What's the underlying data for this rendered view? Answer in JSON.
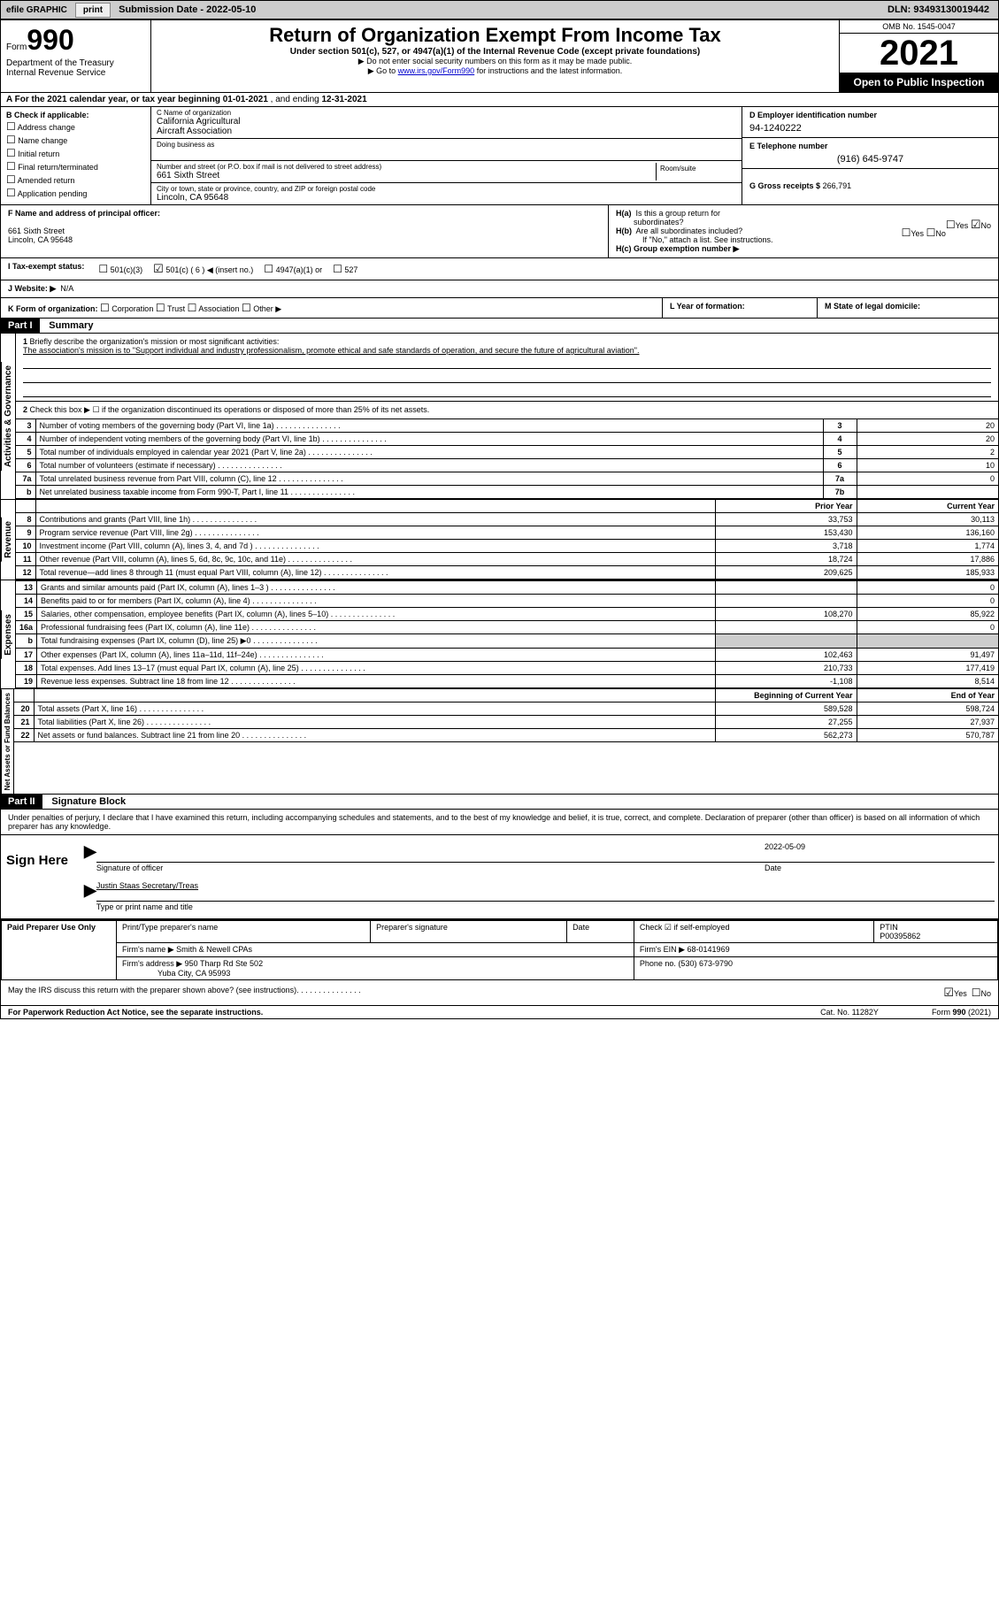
{
  "topbar": {
    "efile_label": "efile GRAPHIC",
    "print_btn": "print",
    "submission_label": "Submission Date - 2022-05-10",
    "dln": "DLN: 93493130019442"
  },
  "header": {
    "form_label": "Form",
    "form_num": "990",
    "dept": "Department of the Treasury",
    "irs": "Internal Revenue Service",
    "title": "Return of Organization Exempt From Income Tax",
    "subtitle": "Under section 501(c), 527, or 4947(a)(1) of the Internal Revenue Code (except private foundations)",
    "note1": "▶ Do not enter social security numbers on this form as it may be made public.",
    "note2_pre": "▶ Go to ",
    "note2_link": "www.irs.gov/Form990",
    "note2_post": " for instructions and the latest information.",
    "omb": "OMB No. 1545-0047",
    "year": "2021",
    "open": "Open to Public Inspection"
  },
  "row_a": {
    "text_pre": "A For the 2021 calendar year, or tax year beginning ",
    "begin": "01-01-2021",
    "mid": " , and ending ",
    "end": "12-31-2021"
  },
  "col_b": {
    "title": "B Check if applicable:",
    "items": [
      "Address change",
      "Name change",
      "Initial return",
      "Final return/terminated",
      "Amended return",
      "Application pending"
    ]
  },
  "col_c": {
    "name_label": "C Name of organization",
    "name1": "California Agricultural",
    "name2": "Aircraft Association",
    "dba_label": "Doing business as",
    "addr_label": "Number and street (or P.O. box if mail is not delivered to street address)",
    "room_label": "Room/suite",
    "street": "661 Sixth Street",
    "city_label": "City or town, state or province, country, and ZIP or foreign postal code",
    "city": "Lincoln, CA  95648"
  },
  "col_d": {
    "ein_label": "D Employer identification number",
    "ein": "94-1240222",
    "tel_label": "E Telephone number",
    "tel": "(916) 645-9747",
    "gross_label": "G Gross receipts $",
    "gross": "266,791"
  },
  "col_f": {
    "label": "F  Name and address of principal officer:",
    "l1": "661 Sixth Street",
    "l2": "Lincoln, CA  95648"
  },
  "col_h": {
    "ha": "H(a)  Is this a group return for subordinates?",
    "hb": "H(b)  Are all subordinates included?",
    "hb_note": "If \"No,\" attach a list. See instructions.",
    "hc": "H(c)  Group exemption number ▶",
    "yes": "Yes",
    "no": "No"
  },
  "row_i": {
    "label": "I   Tax-exempt status:",
    "o1": "501(c)(3)",
    "o2": "501(c) ( 6 ) ◀ (insert no.)",
    "o3": "4947(a)(1) or",
    "o4": "527"
  },
  "row_j": {
    "label": "J   Website: ▶",
    "val": "N/A"
  },
  "row_k": {
    "k_label": "K Form of organization:",
    "opts": [
      "Corporation",
      "Trust",
      "Association",
      "Other ▶"
    ],
    "l_label": "L Year of formation:",
    "m_label": "M State of legal domicile:"
  },
  "part1": {
    "header": "Part I",
    "title": "Summary",
    "vtab_ag": "Activities & Governance",
    "vtab_rev": "Revenue",
    "vtab_exp": "Expenses",
    "vtab_na": "Net Assets or Fund Balances",
    "l1_label": "Briefly describe the organization's mission or most significant activities:",
    "l1_text": "The association's mission is to \"Support individual and industry professionalism, promote ethical and safe standards of operation, and secure the future of agricultural aviation\".",
    "l2": "Check this box ▶ ☐  if the organization discontinued its operations or disposed of more than 25% of its net assets.",
    "rows_ag": [
      {
        "n": "3",
        "t": "Number of voting members of the governing body (Part VI, line 1a)",
        "b": "3",
        "v": "20"
      },
      {
        "n": "4",
        "t": "Number of independent voting members of the governing body (Part VI, line 1b)",
        "b": "4",
        "v": "20"
      },
      {
        "n": "5",
        "t": "Total number of individuals employed in calendar year 2021 (Part V, line 2a)",
        "b": "5",
        "v": "2"
      },
      {
        "n": "6",
        "t": "Total number of volunteers (estimate if necessary)",
        "b": "6",
        "v": "10"
      },
      {
        "n": "7a",
        "t": "Total unrelated business revenue from Part VIII, column (C), line 12",
        "b": "7a",
        "v": "0"
      },
      {
        "n": "b",
        "t": "Net unrelated business taxable income from Form 990-T, Part I, line 11",
        "b": "7b",
        "v": ""
      }
    ],
    "prior_hdr": "Prior Year",
    "curr_hdr": "Current Year",
    "rows_rev": [
      {
        "n": "8",
        "t": "Contributions and grants (Part VIII, line 1h)",
        "p": "33,753",
        "c": "30,113"
      },
      {
        "n": "9",
        "t": "Program service revenue (Part VIII, line 2g)",
        "p": "153,430",
        "c": "136,160"
      },
      {
        "n": "10",
        "t": "Investment income (Part VIII, column (A), lines 3, 4, and 7d )",
        "p": "3,718",
        "c": "1,774"
      },
      {
        "n": "11",
        "t": "Other revenue (Part VIII, column (A), lines 5, 6d, 8c, 9c, 10c, and 11e)",
        "p": "18,724",
        "c": "17,886"
      },
      {
        "n": "12",
        "t": "Total revenue—add lines 8 through 11 (must equal Part VIII, column (A), line 12)",
        "p": "209,625",
        "c": "185,933"
      }
    ],
    "rows_exp": [
      {
        "n": "13",
        "t": "Grants and similar amounts paid (Part IX, column (A), lines 1–3 )",
        "p": "",
        "c": "0"
      },
      {
        "n": "14",
        "t": "Benefits paid to or for members (Part IX, column (A), line 4)",
        "p": "",
        "c": "0"
      },
      {
        "n": "15",
        "t": "Salaries, other compensation, employee benefits (Part IX, column (A), lines 5–10)",
        "p": "108,270",
        "c": "85,922"
      },
      {
        "n": "16a",
        "t": "Professional fundraising fees (Part IX, column (A), line 11e)",
        "p": "",
        "c": "0"
      },
      {
        "n": "b",
        "t": "Total fundraising expenses (Part IX, column (D), line 25) ▶0",
        "p": "SHADE",
        "c": "SHADE"
      },
      {
        "n": "17",
        "t": "Other expenses (Part IX, column (A), lines 11a–11d, 11f–24e)",
        "p": "102,463",
        "c": "91,497"
      },
      {
        "n": "18",
        "t": "Total expenses. Add lines 13–17 (must equal Part IX, column (A), line 25)",
        "p": "210,733",
        "c": "177,419"
      },
      {
        "n": "19",
        "t": "Revenue less expenses. Subtract line 18 from line 12",
        "p": "-1,108",
        "c": "8,514"
      }
    ],
    "boy_hdr": "Beginning of Current Year",
    "eoy_hdr": "End of Year",
    "rows_na": [
      {
        "n": "20",
        "t": "Total assets (Part X, line 16)",
        "p": "589,528",
        "c": "598,724"
      },
      {
        "n": "21",
        "t": "Total liabilities (Part X, line 26)",
        "p": "27,255",
        "c": "27,937"
      },
      {
        "n": "22",
        "t": "Net assets or fund balances. Subtract line 21 from line 20",
        "p": "562,273",
        "c": "570,787"
      }
    ]
  },
  "part2": {
    "header": "Part II",
    "title": "Signature Block",
    "penalty": "Under penalties of perjury, I declare that I have examined this return, including accompanying schedules and statements, and to the best of my knowledge and belief, it is true, correct, and complete. Declaration of preparer (other than officer) is based on all information of which preparer has any knowledge.",
    "sign_here": "Sign Here",
    "sig_officer": "Signature of officer",
    "sig_date": "2022-05-09",
    "date_lbl": "Date",
    "officer_name": "Justin Staas  Secretary/Treas",
    "type_lbl": "Type or print name and title",
    "paid_prep": "Paid Preparer Use Only",
    "pt_name_lbl": "Print/Type preparer's name",
    "pt_sig_lbl": "Preparer's signature",
    "pt_date_lbl": "Date",
    "check_lbl": "Check ☑ if self-employed",
    "ptin_lbl": "PTIN",
    "ptin": "P00395862",
    "firm_name_lbl": "Firm's name    ▶",
    "firm_name": "Smith & Newell CPAs",
    "firm_ein_lbl": "Firm's EIN ▶",
    "firm_ein": "68-0141969",
    "firm_addr_lbl": "Firm's address ▶",
    "firm_addr1": "950 Tharp Rd Ste 502",
    "firm_addr2": "Yuba City, CA  95993",
    "phone_lbl": "Phone no.",
    "phone": "(530) 673-9790",
    "discuss": "May the IRS discuss this return with the preparer shown above? (see instructions)"
  },
  "footer": {
    "l": "For Paperwork Reduction Act Notice, see the separate instructions.",
    "m": "Cat. No. 11282Y",
    "r": "Form 990 (2021)"
  }
}
